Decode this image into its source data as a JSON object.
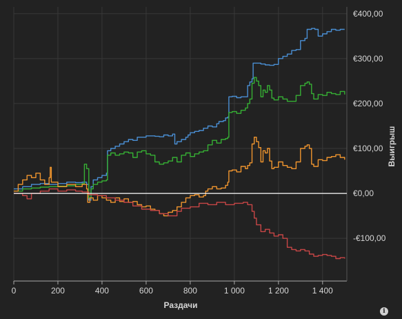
{
  "chart_data": {
    "type": "line",
    "xlabel": "Раздачи",
    "ylabel": "Выигрыш",
    "xlim": [
      0,
      1510
    ],
    "ylim": [
      -195,
      415
    ],
    "x_ticks": [
      {
        "value": 0,
        "label": "0"
      },
      {
        "value": 200,
        "label": "200"
      },
      {
        "value": 400,
        "label": "400"
      },
      {
        "value": 600,
        "label": "600"
      },
      {
        "value": 800,
        "label": "800"
      },
      {
        "value": 1000,
        "label": "1 000"
      },
      {
        "value": 1200,
        "label": "1 200"
      },
      {
        "value": 1400,
        "label": "1 400"
      }
    ],
    "y_ticks": [
      {
        "value": 400,
        "label": "€400,00"
      },
      {
        "value": 300,
        "label": "€300,00"
      },
      {
        "value": 200,
        "label": "€200,00"
      },
      {
        "value": 100,
        "label": "€100,00"
      },
      {
        "value": 0,
        "label": "€0,00"
      },
      {
        "value": -100,
        "label": "-€100,00"
      }
    ],
    "grid": true,
    "y_axis_side": "right",
    "series": [
      {
        "color": "#4a8fd4",
        "points": [
          [
            0,
            10
          ],
          [
            40,
            15
          ],
          [
            80,
            20
          ],
          [
            120,
            22
          ],
          [
            160,
            20
          ],
          [
            200,
            22
          ],
          [
            240,
            25
          ],
          [
            280,
            24
          ],
          [
            310,
            25
          ],
          [
            330,
            20
          ],
          [
            340,
            -15
          ],
          [
            350,
            15
          ],
          [
            360,
            30
          ],
          [
            380,
            35
          ],
          [
            400,
            40
          ],
          [
            420,
            45
          ],
          [
            425,
            95
          ],
          [
            440,
            100
          ],
          [
            460,
            105
          ],
          [
            480,
            110
          ],
          [
            500,
            115
          ],
          [
            520,
            120
          ],
          [
            540,
            118
          ],
          [
            560,
            125
          ],
          [
            600,
            128
          ],
          [
            640,
            127
          ],
          [
            660,
            126
          ],
          [
            680,
            130
          ],
          [
            700,
            128
          ],
          [
            720,
            132
          ],
          [
            730,
            110
          ],
          [
            740,
            115
          ],
          [
            760,
            120
          ],
          [
            780,
            125
          ],
          [
            790,
            130
          ],
          [
            800,
            135
          ],
          [
            820,
            138
          ],
          [
            840,
            140
          ],
          [
            860,
            145
          ],
          [
            880,
            150
          ],
          [
            900,
            148
          ],
          [
            920,
            155
          ],
          [
            930,
            160
          ],
          [
            950,
            162
          ],
          [
            960,
            168
          ],
          [
            970,
            170
          ],
          [
            975,
            215
          ],
          [
            990,
            216
          ],
          [
            1010,
            213
          ],
          [
            1030,
            215
          ],
          [
            1060,
            240
          ],
          [
            1070,
            248
          ],
          [
            1080,
            255
          ],
          [
            1085,
            290
          ],
          [
            1100,
            290
          ],
          [
            1120,
            288
          ],
          [
            1140,
            286
          ],
          [
            1160,
            285
          ],
          [
            1180,
            287
          ],
          [
            1200,
            300
          ],
          [
            1220,
            305
          ],
          [
            1240,
            310
          ],
          [
            1260,
            318
          ],
          [
            1280,
            320
          ],
          [
            1300,
            340
          ],
          [
            1320,
            345
          ],
          [
            1330,
            365
          ],
          [
            1350,
            367
          ],
          [
            1365,
            365
          ],
          [
            1380,
            350
          ],
          [
            1400,
            355
          ],
          [
            1420,
            360
          ],
          [
            1440,
            365
          ],
          [
            1460,
            363
          ],
          [
            1480,
            365
          ],
          [
            1500,
            365
          ]
        ]
      },
      {
        "color": "#36b034",
        "points": [
          [
            0,
            5
          ],
          [
            40,
            10
          ],
          [
            80,
            12
          ],
          [
            120,
            14
          ],
          [
            160,
            15
          ],
          [
            200,
            16
          ],
          [
            240,
            17
          ],
          [
            280,
            20
          ],
          [
            310,
            22
          ],
          [
            320,
            65
          ],
          [
            330,
            55
          ],
          [
            340,
            -10
          ],
          [
            350,
            10
          ],
          [
            360,
            20
          ],
          [
            380,
            25
          ],
          [
            400,
            28
          ],
          [
            420,
            30
          ],
          [
            425,
            85
          ],
          [
            440,
            90
          ],
          [
            460,
            85
          ],
          [
            480,
            88
          ],
          [
            500,
            92
          ],
          [
            520,
            90
          ],
          [
            540,
            80
          ],
          [
            560,
            92
          ],
          [
            580,
            95
          ],
          [
            600,
            88
          ],
          [
            620,
            85
          ],
          [
            640,
            70
          ],
          [
            660,
            65
          ],
          [
            680,
            68
          ],
          [
            700,
            72
          ],
          [
            720,
            80
          ],
          [
            740,
            70
          ],
          [
            760,
            85
          ],
          [
            780,
            90
          ],
          [
            800,
            82
          ],
          [
            820,
            88
          ],
          [
            840,
            92
          ],
          [
            860,
            95
          ],
          [
            880,
            108
          ],
          [
            900,
            118
          ],
          [
            920,
            112
          ],
          [
            940,
            120
          ],
          [
            960,
            122
          ],
          [
            970,
            125
          ],
          [
            975,
            180
          ],
          [
            990,
            182
          ],
          [
            1010,
            178
          ],
          [
            1030,
            185
          ],
          [
            1050,
            190
          ],
          [
            1060,
            200
          ],
          [
            1070,
            210
          ],
          [
            1080,
            245
          ],
          [
            1090,
            258
          ],
          [
            1100,
            250
          ],
          [
            1110,
            240
          ],
          [
            1120,
            215
          ],
          [
            1130,
            230
          ],
          [
            1140,
            225
          ],
          [
            1150,
            240
          ],
          [
            1160,
            230
          ],
          [
            1170,
            212
          ],
          [
            1180,
            208
          ],
          [
            1200,
            215
          ],
          [
            1220,
            210
          ],
          [
            1240,
            205
          ],
          [
            1260,
            205
          ],
          [
            1280,
            218
          ],
          [
            1300,
            240
          ],
          [
            1320,
            245
          ],
          [
            1330,
            248
          ],
          [
            1340,
            243
          ],
          [
            1350,
            222
          ],
          [
            1360,
            210
          ],
          [
            1380,
            220
          ],
          [
            1400,
            218
          ],
          [
            1420,
            225
          ],
          [
            1440,
            222
          ],
          [
            1460,
            220
          ],
          [
            1480,
            227
          ],
          [
            1500,
            220
          ]
        ]
      },
      {
        "color": "#f0952e",
        "points": [
          [
            0,
            5
          ],
          [
            20,
            20
          ],
          [
            40,
            30
          ],
          [
            60,
            40
          ],
          [
            80,
            35
          ],
          [
            100,
            45
          ],
          [
            120,
            30
          ],
          [
            140,
            20
          ],
          [
            160,
            35
          ],
          [
            165,
            58
          ],
          [
            170,
            25
          ],
          [
            200,
            15
          ],
          [
            240,
            20
          ],
          [
            280,
            15
          ],
          [
            310,
            20
          ],
          [
            330,
            10
          ],
          [
            335,
            -20
          ],
          [
            345,
            -10
          ],
          [
            360,
            -15
          ],
          [
            380,
            -5
          ],
          [
            400,
            -10
          ],
          [
            420,
            -15
          ],
          [
            440,
            -20
          ],
          [
            460,
            -10
          ],
          [
            480,
            -18
          ],
          [
            500,
            -12
          ],
          [
            520,
            -20
          ],
          [
            540,
            -18
          ],
          [
            560,
            -25
          ],
          [
            580,
            -30
          ],
          [
            600,
            -28
          ],
          [
            620,
            -35
          ],
          [
            640,
            -38
          ],
          [
            660,
            -45
          ],
          [
            680,
            -50
          ],
          [
            700,
            -42
          ],
          [
            720,
            -38
          ],
          [
            740,
            -30
          ],
          [
            760,
            -20
          ],
          [
            780,
            -10
          ],
          [
            800,
            -5
          ],
          [
            820,
            -3
          ],
          [
            840,
            -8
          ],
          [
            860,
            -5
          ],
          [
            870,
            5
          ],
          [
            880,
            10
          ],
          [
            900,
            15
          ],
          [
            920,
            10
          ],
          [
            940,
            12
          ],
          [
            960,
            18
          ],
          [
            970,
            25
          ],
          [
            975,
            50
          ],
          [
            990,
            52
          ],
          [
            1010,
            48
          ],
          [
            1030,
            60
          ],
          [
            1050,
            55
          ],
          [
            1060,
            62
          ],
          [
            1070,
            68
          ],
          [
            1080,
            110
          ],
          [
            1090,
            125
          ],
          [
            1100,
            115
          ],
          [
            1110,
            102
          ],
          [
            1120,
            70
          ],
          [
            1130,
            95
          ],
          [
            1140,
            90
          ],
          [
            1150,
            100
          ],
          [
            1160,
            72
          ],
          [
            1170,
            55
          ],
          [
            1180,
            58
          ],
          [
            1200,
            70
          ],
          [
            1220,
            62
          ],
          [
            1240,
            58
          ],
          [
            1260,
            55
          ],
          [
            1280,
            70
          ],
          [
            1300,
            100
          ],
          [
            1320,
            105
          ],
          [
            1330,
            108
          ],
          [
            1340,
            100
          ],
          [
            1350,
            65
          ],
          [
            1360,
            60
          ],
          [
            1380,
            75
          ],
          [
            1400,
            73
          ],
          [
            1420,
            80
          ],
          [
            1440,
            82
          ],
          [
            1460,
            86
          ],
          [
            1480,
            80
          ],
          [
            1500,
            75
          ]
        ]
      },
      {
        "color": "#c84646",
        "points": [
          [
            0,
            0
          ],
          [
            40,
            -5
          ],
          [
            60,
            -12
          ],
          [
            80,
            0
          ],
          [
            120,
            5
          ],
          [
            160,
            10
          ],
          [
            200,
            5
          ],
          [
            240,
            8
          ],
          [
            280,
            5
          ],
          [
            310,
            3
          ],
          [
            340,
            -3
          ],
          [
            380,
            -5
          ],
          [
            420,
            -10
          ],
          [
            460,
            -15
          ],
          [
            500,
            -20
          ],
          [
            540,
            -28
          ],
          [
            580,
            -35
          ],
          [
            620,
            -38
          ],
          [
            660,
            -45
          ],
          [
            700,
            -50
          ],
          [
            740,
            -40
          ],
          [
            760,
            -33
          ],
          [
            800,
            -30
          ],
          [
            840,
            -22
          ],
          [
            880,
            -25
          ],
          [
            920,
            -20
          ],
          [
            960,
            -25
          ],
          [
            1000,
            -22
          ],
          [
            1040,
            -20
          ],
          [
            1060,
            -25
          ],
          [
            1080,
            -40
          ],
          [
            1090,
            -55
          ],
          [
            1100,
            -70
          ],
          [
            1120,
            -85
          ],
          [
            1140,
            -80
          ],
          [
            1160,
            -88
          ],
          [
            1180,
            -95
          ],
          [
            1200,
            -92
          ],
          [
            1220,
            -100
          ],
          [
            1240,
            -120
          ],
          [
            1260,
            -125
          ],
          [
            1280,
            -128
          ],
          [
            1300,
            -125
          ],
          [
            1320,
            -128
          ],
          [
            1340,
            -135
          ],
          [
            1360,
            -140
          ],
          [
            1380,
            -138
          ],
          [
            1400,
            -136
          ],
          [
            1420,
            -138
          ],
          [
            1440,
            -140
          ],
          [
            1460,
            -145
          ],
          [
            1480,
            -143
          ],
          [
            1500,
            -145
          ]
        ]
      }
    ]
  }
}
